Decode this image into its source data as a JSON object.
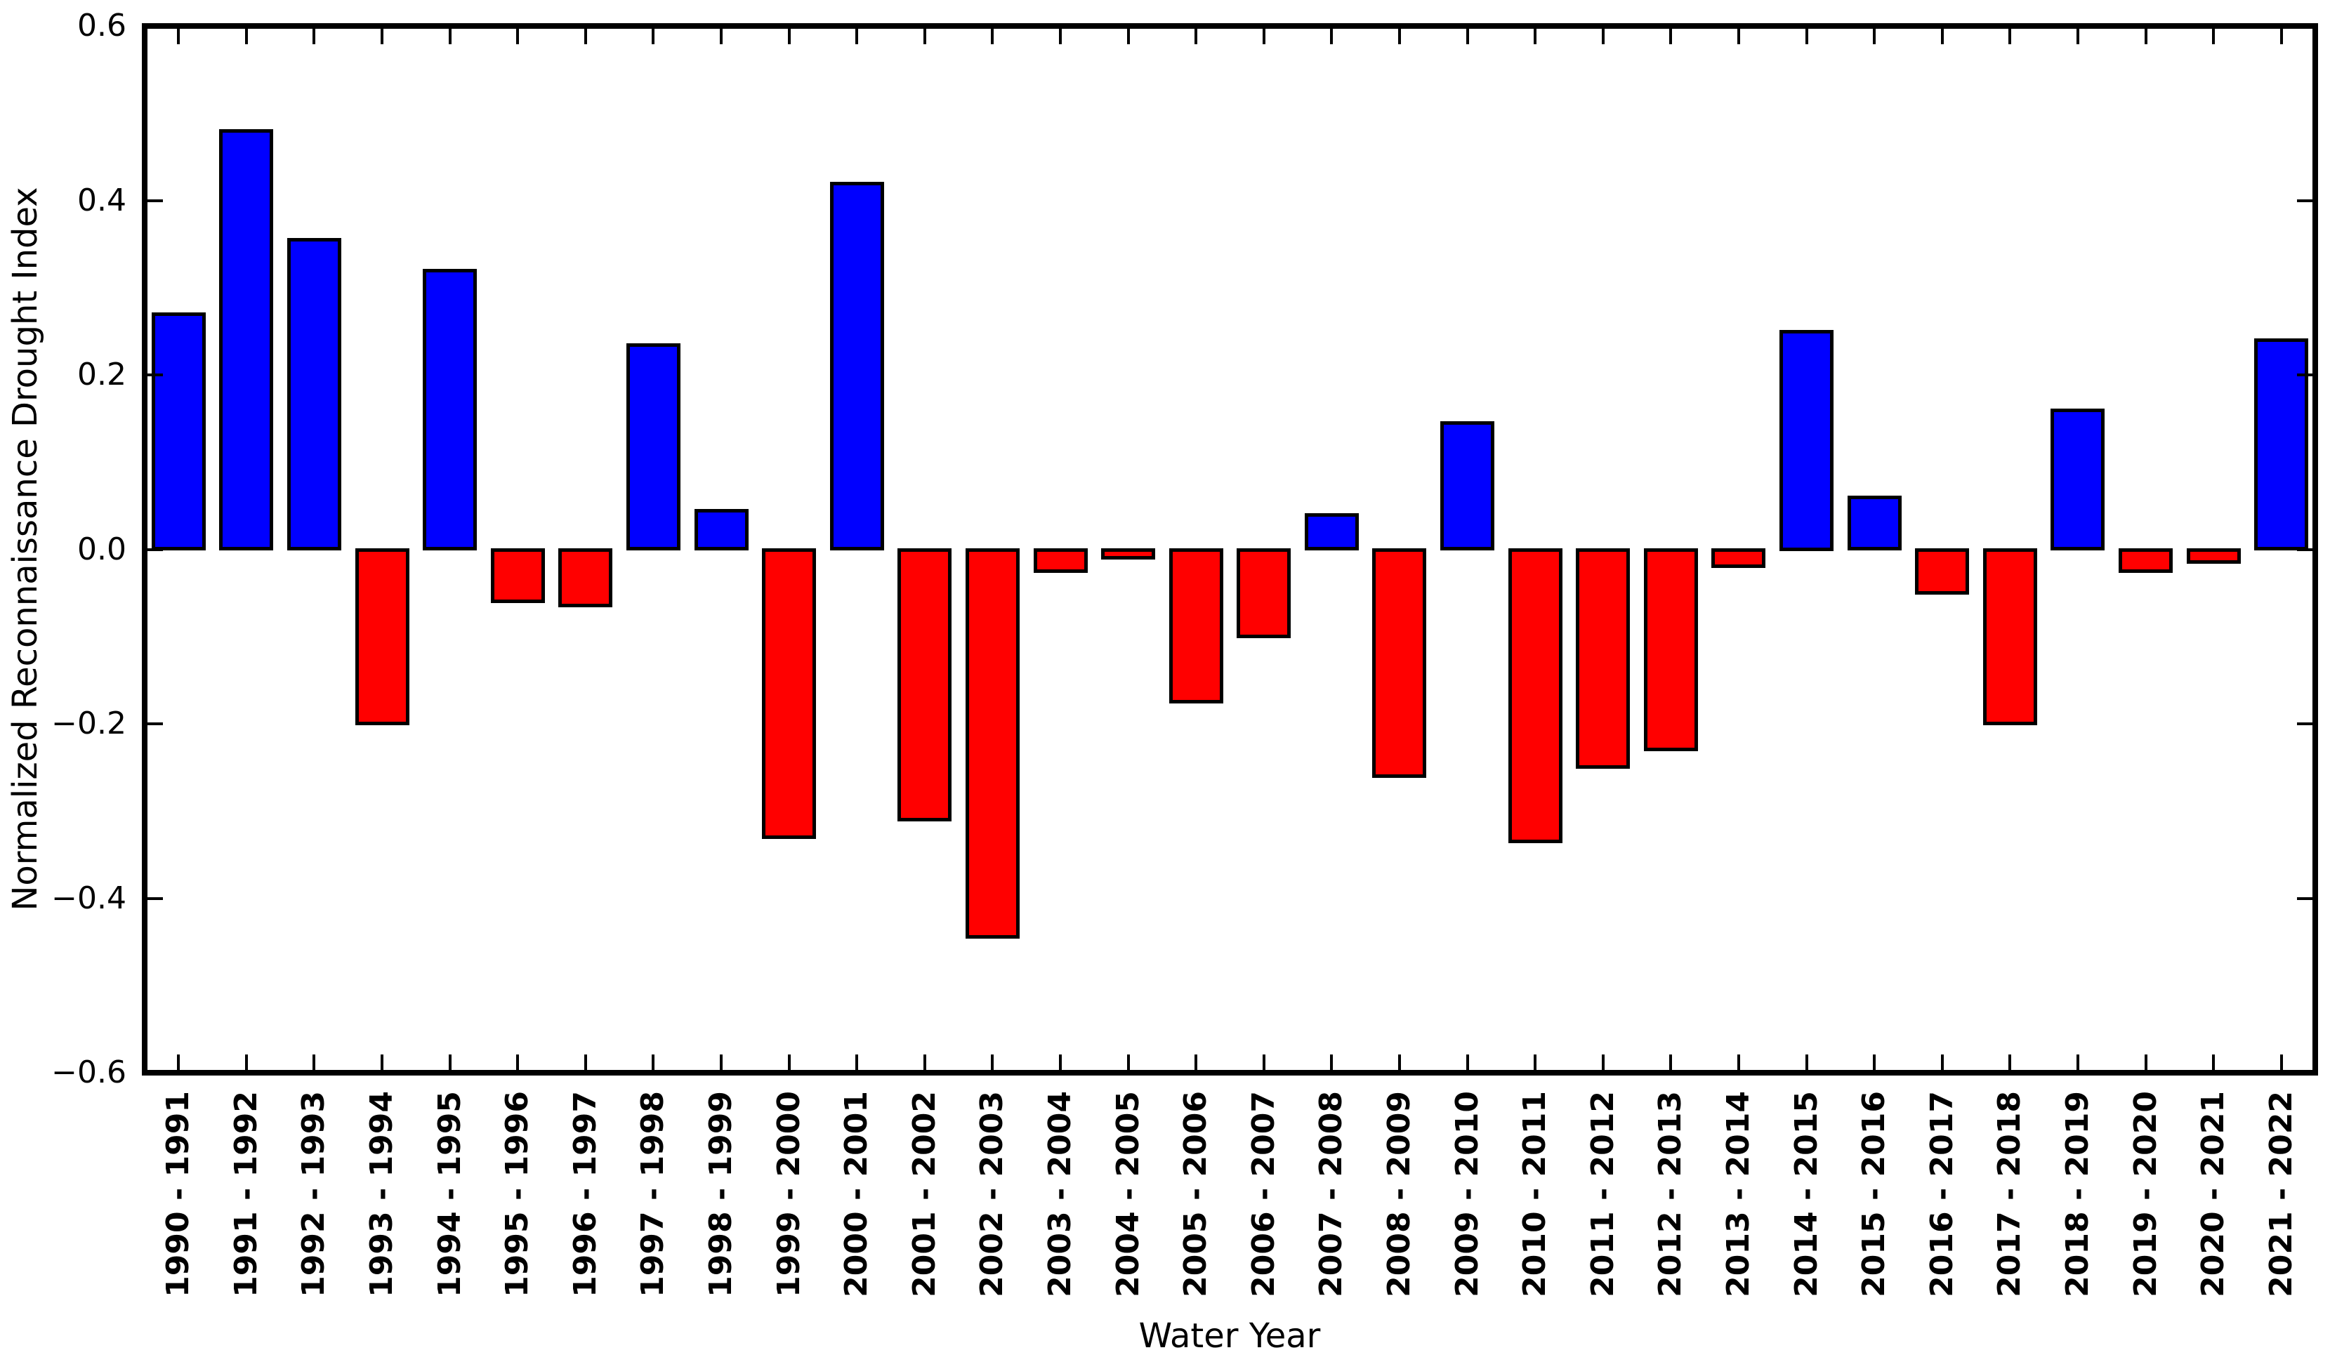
{
  "figure": {
    "background": "#ffffff"
  },
  "chart_data": {
    "type": "bar",
    "title": "",
    "xlabel": "Water Year",
    "ylabel": "Normalized Reconnaissance Drought Index",
    "ylim": [
      -0.6,
      0.6
    ],
    "ytick_values": [
      0.6,
      0.4,
      0.2,
      0.0,
      -0.2,
      -0.4,
      -0.6
    ],
    "ytick_labels": [
      "0.6",
      "0.4",
      "0.2",
      "0.0",
      "−0.2",
      "−0.4",
      "−0.6"
    ],
    "grid": false,
    "legend": false,
    "tick_direction": "in",
    "bar_colors": {
      "positive": "#0000ff",
      "negative": "#ff0000",
      "edge": "#000000"
    },
    "categories": [
      "1990 - 1991",
      "1991 - 1992",
      "1992 - 1993",
      "1993 - 1994",
      "1994 - 1995",
      "1995 - 1996",
      "1996 - 1997",
      "1997 - 1998",
      "1998 - 1999",
      "1999 - 2000",
      "2000 - 2001",
      "2001 - 2002",
      "2002 - 2003",
      "2003 - 2004",
      "2004 - 2005",
      "2005 - 2006",
      "2006 - 2007",
      "2007 - 2008",
      "2008 - 2009",
      "2009 - 2010",
      "2010 - 2011",
      "2011 - 2012",
      "2012 - 2013",
      "2013 - 2014",
      "2014 - 2015",
      "2015 - 2016",
      "2016 - 2017",
      "2017 - 2018",
      "2018 - 2019",
      "2019 - 2020",
      "2020 - 2021",
      "2021 - 2022"
    ],
    "values": [
      0.27,
      0.48,
      0.355,
      -0.2,
      0.32,
      -0.06,
      -0.065,
      0.235,
      0.045,
      -0.33,
      0.42,
      -0.31,
      -0.445,
      -0.025,
      -0.01,
      -0.175,
      -0.1,
      0.04,
      -0.26,
      0.145,
      -0.335,
      -0.25,
      -0.23,
      -0.02,
      0.25,
      0.06,
      -0.05,
      -0.2,
      0.16,
      -0.025,
      -0.015,
      0.24
    ]
  }
}
